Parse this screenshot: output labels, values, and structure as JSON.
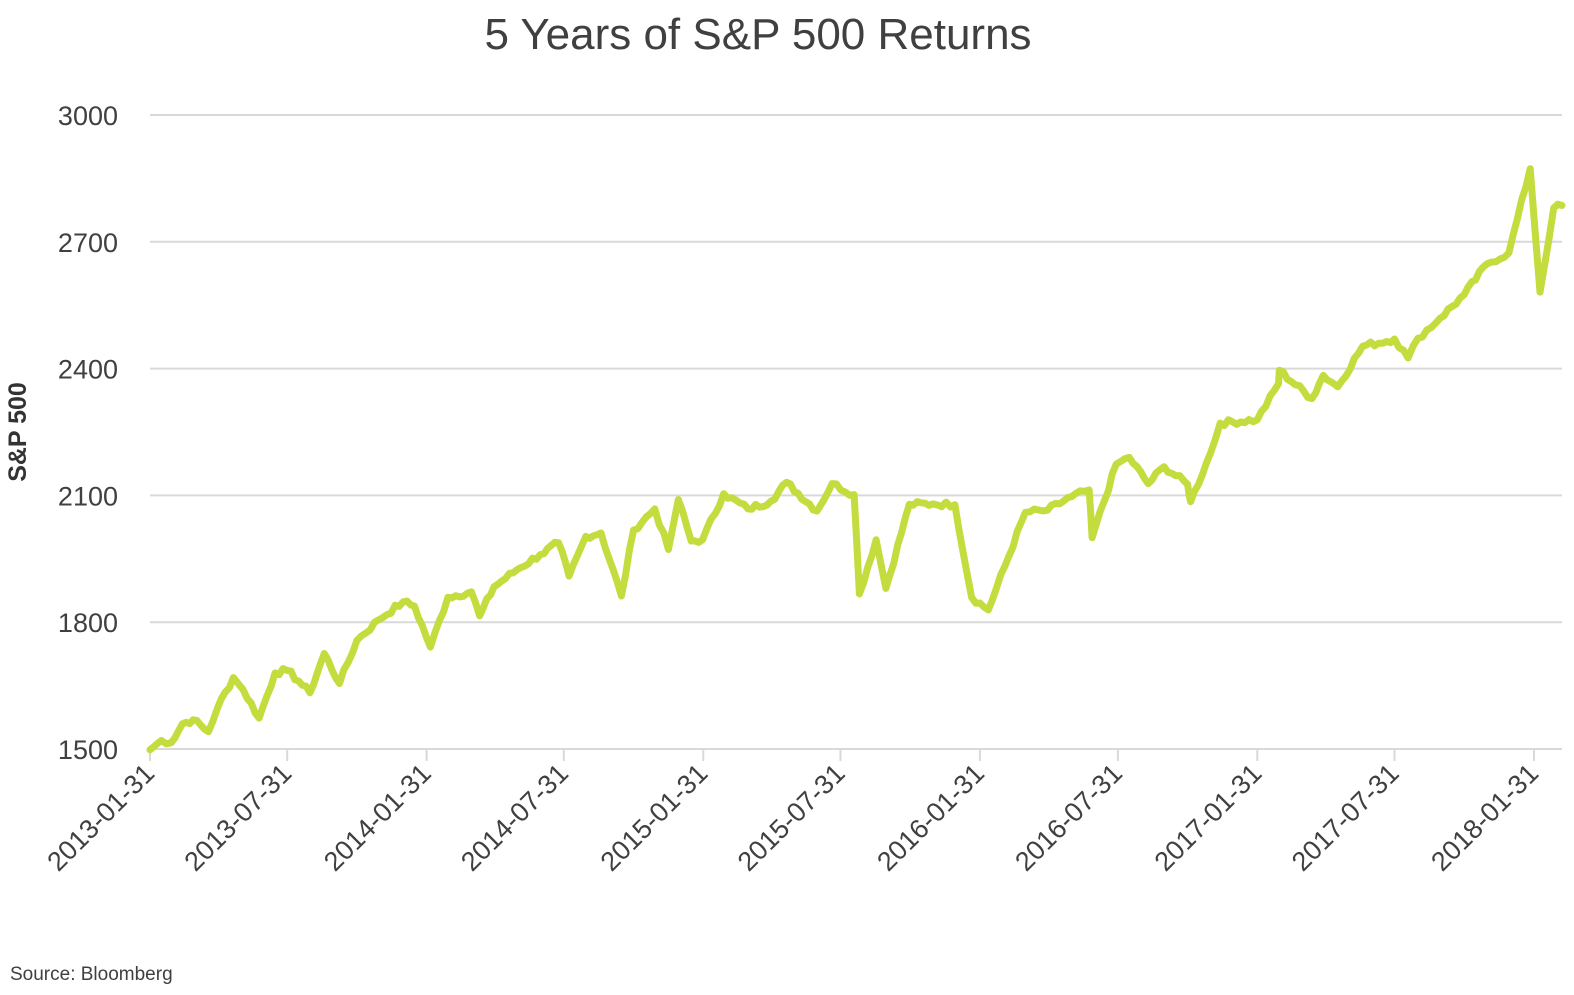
{
  "chart_data": {
    "type": "line",
    "title": "5 Years of S&P 500 Returns",
    "xlabel": "",
    "ylabel": "S&P 500",
    "source": "Source: Bloomberg",
    "ylim": [
      1500,
      3000
    ],
    "yticks": [
      "1500",
      "1800",
      "2100",
      "2400",
      "2700",
      "3000"
    ],
    "xlim": [
      "2013-01-31",
      "2018-03-09"
    ],
    "xticks": [
      "2013-01-31",
      "2013-07-31",
      "2014-01-31",
      "2014-07-31",
      "2015-01-31",
      "2015-07-31",
      "2016-01-31",
      "2016-07-31",
      "2017-01-31",
      "2017-07-31",
      "2018-01-31"
    ],
    "grid": "horizontal",
    "legend": "none",
    "line_color": "#c5dc3e",
    "grid_color": "#d9d9d9",
    "series": [
      {
        "x": [
          "2013-01-31",
          "2013-02-15",
          "2013-02-28",
          "2013-03-15",
          "2013-03-29",
          "2013-04-18",
          "2013-04-30",
          "2013-05-21",
          "2013-06-03",
          "2013-06-24",
          "2013-07-15",
          "2013-07-31",
          "2013-08-15",
          "2013-08-30",
          "2013-09-18",
          "2013-10-08",
          "2013-10-31",
          "2013-11-29",
          "2013-12-31",
          "2014-01-15",
          "2014-02-05",
          "2014-02-28",
          "2014-03-31",
          "2014-04-11",
          "2014-04-30",
          "2014-05-30",
          "2014-06-30",
          "2014-07-24",
          "2014-08-07",
          "2014-08-29",
          "2014-09-18",
          "2014-10-15",
          "2014-10-31",
          "2014-11-28",
          "2014-12-16",
          "2014-12-29",
          "2015-01-15",
          "2015-01-30",
          "2015-02-27",
          "2015-03-31",
          "2015-04-30",
          "2015-05-21",
          "2015-06-30",
          "2015-07-20",
          "2015-08-18",
          "2015-08-25",
          "2015-09-16",
          "2015-09-29",
          "2015-10-30",
          "2015-11-30",
          "2015-12-29",
          "2016-01-20",
          "2016-02-11",
          "2016-03-31",
          "2016-04-29",
          "2016-05-31",
          "2016-06-23",
          "2016-06-27",
          "2016-07-29",
          "2016-08-15",
          "2016-09-09",
          "2016-09-30",
          "2016-10-31",
          "2016-11-04",
          "2016-11-30",
          "2016-12-13",
          "2017-01-31",
          "2017-02-28",
          "2017-03-01",
          "2017-04-13",
          "2017-04-28",
          "2017-05-17",
          "2017-06-19",
          "2017-07-31",
          "2017-08-18",
          "2017-08-31",
          "2017-09-29",
          "2017-10-31",
          "2017-11-30",
          "2017-12-29",
          "2018-01-26",
          "2018-02-08",
          "2018-02-26",
          "2018-03-09"
        ],
        "y": [
          1498,
          1520,
          1515,
          1560,
          1569,
          1541,
          1597,
          1669,
          1640,
          1573,
          1680,
          1686,
          1661,
          1633,
          1726,
          1655,
          1757,
          1806,
          1848,
          1838,
          1741,
          1859,
          1872,
          1815,
          1884,
          1924,
          1960,
          1988,
          1909,
          2003,
          2011,
          1862,
          2018,
          2068,
          1972,
          2090,
          1992,
          1995,
          2104,
          2068,
          2086,
          2131,
          2063,
          2128,
          2102,
          1867,
          1995,
          1880,
          2079,
          2080,
          2078,
          1859,
          1829,
          2060,
          2065,
          2097,
          2113,
          2000,
          2174,
          2190,
          2128,
          2168,
          2126,
          2085,
          2199,
          2271,
          2279,
          2364,
          2396,
          2329,
          2384,
          2357,
          2453,
          2470,
          2425,
          2472,
          2519,
          2575,
          2648,
          2674,
          2873,
          2581,
          2780,
          2786
        ]
      }
    ]
  }
}
